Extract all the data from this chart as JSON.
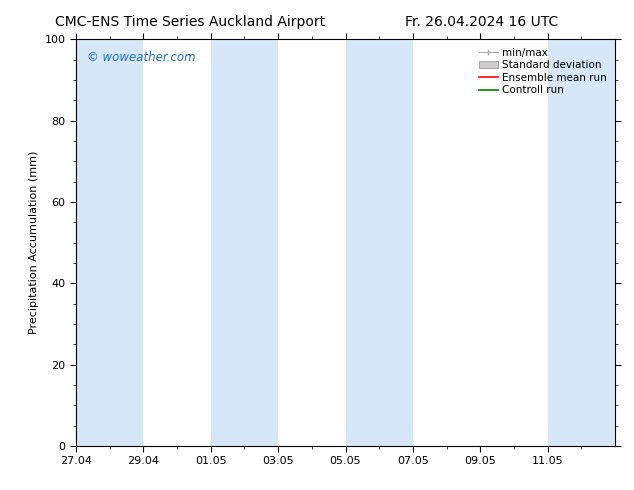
{
  "title_left": "CMC-ENS Time Series Auckland Airport",
  "title_right": "Fr. 26.04.2024 16 UTC",
  "ylabel": "Precipitation Accumulation (mm)",
  "watermark": "© woweather.com",
  "watermark_color": "#1a6ed8",
  "ylim": [
    0,
    100
  ],
  "yticks": [
    0,
    20,
    40,
    60,
    80,
    100
  ],
  "xlim": [
    0,
    16
  ],
  "x_tick_labels": [
    "27.04",
    "29.04",
    "01.05",
    "03.05",
    "05.05",
    "07.05",
    "09.05",
    "11.05"
  ],
  "x_tick_positions": [
    0,
    2,
    4,
    6,
    8,
    10,
    12,
    14
  ],
  "shaded_bands": [
    [
      0,
      2
    ],
    [
      4,
      6
    ],
    [
      8,
      10
    ],
    [
      14,
      16
    ]
  ],
  "shaded_color": "#d6e8f7",
  "background_color": "#ffffff",
  "plot_bg_color": "#ffffff",
  "legend_entries": [
    "min/max",
    "Standard deviation",
    "Ensemble mean run",
    "Controll run"
  ],
  "legend_colors": [
    "#aaaaaa",
    "#c8c8c8",
    "#ff0000",
    "#008000"
  ],
  "title_fontsize": 10,
  "axis_label_fontsize": 8,
  "tick_fontsize": 8,
  "legend_fontsize": 7.5,
  "watermark_fontsize": 8.5
}
